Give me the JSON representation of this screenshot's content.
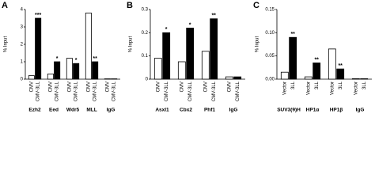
{
  "chart_data": [
    {
      "type": "bar",
      "panel_label": "A",
      "y_label": "% Input",
      "categories": [
        "Ezh2",
        "Eed",
        "Wdr5",
        "MLL",
        "IgG"
      ],
      "series": [
        {
          "name": "CMV",
          "color": "#ffffff",
          "values": [
            0.2,
            0.3,
            1.2,
            3.8,
            0.02
          ]
        },
        {
          "name": "CMV-3LL",
          "color": "#000000",
          "values": [
            3.5,
            1.0,
            0.9,
            1.0,
            0.02
          ]
        }
      ],
      "significance": [
        "***",
        "*",
        "*",
        "**",
        null
      ],
      "ylim": [
        0,
        4
      ],
      "yticks": [
        0,
        1,
        2,
        3,
        4
      ]
    },
    {
      "type": "bar",
      "panel_label": "B",
      "y_label": "% Input",
      "categories": [
        "Asxl1",
        "Cbx2",
        "Phf1",
        "IgG"
      ],
      "series": [
        {
          "name": "CMV",
          "color": "#ffffff",
          "values": [
            0.09,
            0.075,
            0.12,
            0.01
          ]
        },
        {
          "name": "CMV-3LL",
          "color": "#000000",
          "values": [
            0.2,
            0.22,
            0.26,
            0.01
          ]
        }
      ],
      "significance": [
        "*",
        "*",
        "**",
        null
      ],
      "ylim": [
        0,
        0.3
      ],
      "yticks": [
        0,
        0.1,
        0.2,
        0.3
      ]
    },
    {
      "type": "bar",
      "panel_label": "C",
      "y_label": "% Input",
      "categories": [
        "SUV3(9)H",
        "HP1α",
        "HP1β",
        "IgG"
      ],
      "series": [
        {
          "name": "Vector",
          "color": "#ffffff",
          "values": [
            0.015,
            0.005,
            0.065,
            0.001
          ]
        },
        {
          "name": "3LL",
          "color": "#000000",
          "values": [
            0.09,
            0.035,
            0.022,
            0.001
          ]
        }
      ],
      "significance": [
        "**",
        "**",
        "**",
        null
      ],
      "ylim": [
        0,
        0.15
      ],
      "yticks": [
        {
          "value": 0,
          "label": "0.00"
        },
        {
          "value": 0.05,
          "label": "0.05"
        },
        {
          "value": 0.1,
          "label": "0.10"
        },
        {
          "value": 0.15,
          "label": "0.15"
        }
      ]
    }
  ]
}
